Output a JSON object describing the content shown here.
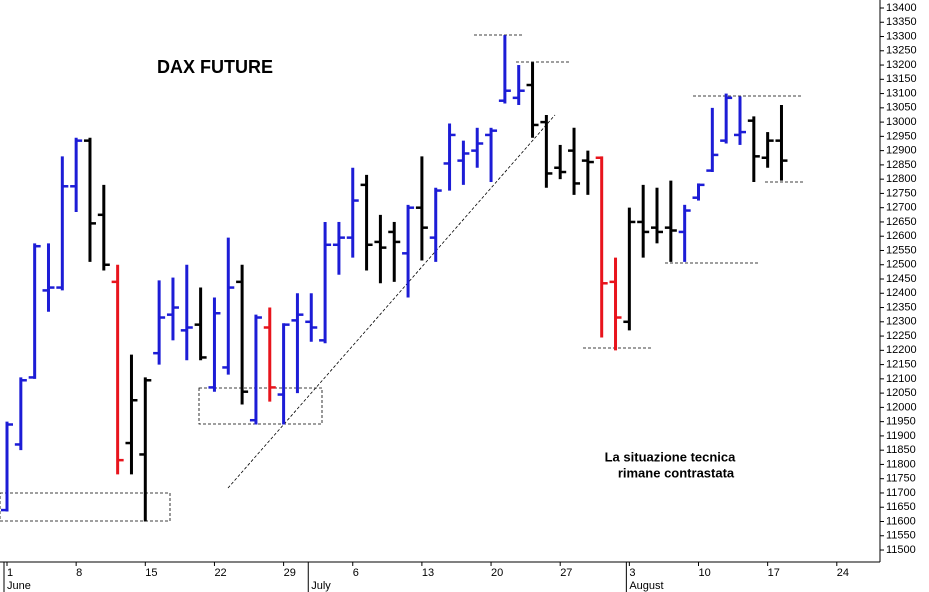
{
  "chart_data": {
    "type": "ohlc",
    "title": "DAX FUTURE",
    "annotations": [
      "La situazione tecnica",
      "rimane contrastata"
    ],
    "categories": [
      "1",
      null,
      null,
      null,
      null,
      "8",
      null,
      null,
      null,
      null,
      "15",
      null,
      null,
      null,
      null,
      "22",
      null,
      null,
      null,
      null,
      "29",
      null,
      null,
      null,
      null,
      "6",
      null,
      null,
      null,
      null,
      "13",
      null,
      null,
      null,
      null,
      "20",
      null,
      null,
      null,
      null,
      "27",
      null,
      null,
      null,
      null,
      "3",
      null,
      null,
      null,
      null,
      "10",
      null,
      null,
      null,
      null,
      "17",
      null,
      null,
      null,
      null,
      "24"
    ],
    "month_labels": [
      "June",
      null,
      null,
      null,
      null,
      null,
      null,
      null,
      null,
      null,
      null,
      null,
      null,
      null,
      null,
      null,
      null,
      null,
      null,
      null,
      null,
      null,
      "July",
      null,
      null,
      null,
      null,
      null,
      null,
      null,
      null,
      null,
      null,
      null,
      null,
      null,
      null,
      null,
      null,
      null,
      null,
      null,
      null,
      null,
      null,
      "August",
      null,
      null,
      null,
      null,
      null,
      null,
      null,
      null,
      null,
      null,
      null,
      null,
      null,
      null,
      null
    ],
    "open": [
      11640,
      11870,
      12105,
      12410,
      12420,
      12775,
      12935,
      12675,
      12440,
      11875,
      11835,
      12190,
      12325,
      12270,
      12290,
      12070,
      12140,
      12440,
      11955,
      12280,
      12045,
      12305,
      12300,
      12235,
      12570,
      12595,
      12780,
      12580,
      12615,
      12540,
      12700,
      12595,
      12855,
      12865,
      12900,
      12955,
      13075,
      13085,
      13130,
      13000,
      12840,
      12900,
      12865,
      12875,
      12440,
      12300,
      12650,
      12630,
      12630,
      12615,
      12735,
      12830,
      12935,
      12955,
      13005,
      12875,
      12935,
      null,
      null,
      null,
      null
    ],
    "high": [
      11950,
      12105,
      12575,
      12575,
      12880,
      12945,
      12945,
      12780,
      12500,
      12185,
      12105,
      12445,
      12455,
      12500,
      12420,
      12385,
      12595,
      12500,
      12325,
      12350,
      12295,
      12400,
      12400,
      12650,
      12650,
      12840,
      12815,
      12675,
      12650,
      12710,
      12880,
      12770,
      12995,
      12935,
      12980,
      12980,
      13305,
      13200,
      13210,
      13025,
      12920,
      12980,
      12900,
      12880,
      12525,
      12700,
      12780,
      12770,
      12795,
      12710,
      12785,
      13050,
      13100,
      13090,
      13020,
      12965,
      13060,
      null,
      null,
      null,
      null
    ],
    "low": [
      11635,
      11850,
      12100,
      12335,
      12410,
      12685,
      12510,
      12480,
      11765,
      11765,
      11600,
      12150,
      12235,
      12165,
      12165,
      12055,
      12115,
      12010,
      11940,
      12020,
      11940,
      12050,
      12230,
      12225,
      12465,
      12525,
      12480,
      12435,
      12440,
      12385,
      12515,
      12510,
      12760,
      12780,
      12840,
      12790,
      13065,
      13060,
      12945,
      12770,
      12800,
      12745,
      12745,
      12245,
      12200,
      12270,
      12525,
      12575,
      12510,
      12510,
      12725,
      12825,
      12925,
      12920,
      12790,
      12840,
      12795,
      null,
      null,
      null,
      null
    ],
    "close": [
      11940,
      12095,
      12565,
      12420,
      12775,
      12935,
      12645,
      12500,
      11815,
      12025,
      12095,
      12315,
      12350,
      12280,
      12175,
      12330,
      12420,
      12055,
      12315,
      12070,
      12290,
      12325,
      12280,
      12570,
      12595,
      12725,
      12570,
      12560,
      12580,
      12700,
      12630,
      12760,
      12955,
      12890,
      12925,
      12970,
      13110,
      13110,
      12990,
      12820,
      12825,
      12785,
      12860,
      12435,
      12315,
      12650,
      12615,
      12615,
      12620,
      12690,
      12780,
      12885,
      13085,
      12965,
      12880,
      12935,
      12865,
      null,
      null,
      null,
      null
    ],
    "colors": [
      "#1c1cd6",
      "#1c1cd6",
      "#1c1cd6",
      "#1c1cd6",
      "#1c1cd6",
      "#1c1cd6",
      "#000000",
      "#000000",
      "#e8141c",
      "#000000",
      "#000000",
      "#1c1cd6",
      "#1c1cd6",
      "#1c1cd6",
      "#000000",
      "#1c1cd6",
      "#1c1cd6",
      "#000000",
      "#1c1cd6",
      "#e8141c",
      "#1c1cd6",
      "#1c1cd6",
      "#1c1cd6",
      "#1c1cd6",
      "#1c1cd6",
      "#1c1cd6",
      "#000000",
      "#000000",
      "#000000",
      "#1c1cd6",
      "#000000",
      "#1c1cd6",
      "#1c1cd6",
      "#1c1cd6",
      "#1c1cd6",
      "#1c1cd6",
      "#1c1cd6",
      "#1c1cd6",
      "#000000",
      "#000000",
      "#000000",
      "#000000",
      "#000000",
      "#e8141c",
      "#e8141c",
      "#000000",
      "#000000",
      "#000000",
      "#000000",
      "#1c1cd6",
      "#1c1cd6",
      "#1c1cd6",
      "#1c1cd6",
      "#1c1cd6",
      "#000000",
      "#000000",
      "#000000",
      null,
      null,
      null,
      null
    ],
    "ylim": [
      11458,
      13428
    ],
    "yticks": [
      11500,
      11550,
      11600,
      11650,
      11700,
      11750,
      11800,
      11850,
      11900,
      11950,
      12000,
      12050,
      12100,
      12150,
      12200,
      12250,
      12300,
      12350,
      12400,
      12450,
      12500,
      12550,
      12600,
      12650,
      12700,
      12750,
      12800,
      12850,
      12900,
      12950,
      13000,
      13050,
      13100,
      13150,
      13200,
      13250,
      13300,
      13350,
      13400
    ],
    "grid": false
  }
}
